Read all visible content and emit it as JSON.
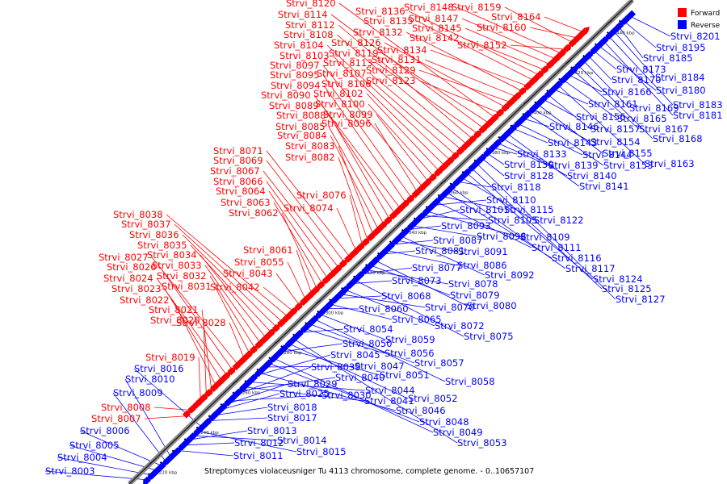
{
  "caption": "Streptomyces violaceusniger Tu 4113 chromosome, complete genome. - 0..10657107",
  "legend": {
    "forward_label": "Forward",
    "reverse_label": "Reverse",
    "forward_color": "#ff0000",
    "reverse_color": "#0000ff"
  },
  "axis": {
    "ticks": [
      "9220 kbp",
      "9240 kbp",
      "9260 kbp",
      "9280 kbp",
      "9300 kbp",
      "9320 kbp",
      "9340 kbp",
      "9360 kbp",
      "9380 kbp",
      "9400 kbp",
      "9420 kbp",
      "9440 kbp"
    ]
  },
  "forward_genes": [
    "Strvi_8007",
    "Strvi_8008",
    "Strvi_8019",
    "Strvi_8020",
    "Strvi_8021",
    "Strvi_8022",
    "Strvi_8023",
    "Strvi_8024",
    "Strvi_8026",
    "Strvi_8027",
    "Strvi_8028",
    "Strvi_8031",
    "Strvi_8032",
    "Strvi_8033",
    "Strvi_8034",
    "Strvi_8035",
    "Strvi_8036",
    "Strvi_8037",
    "Strvi_8038",
    "Strvi_8042",
    "Strvi_8043",
    "Strvi_8055",
    "Strvi_8061",
    "Strvi_8062",
    "Strvi_8063",
    "Strvi_8064",
    "Strvi_8066",
    "Strvi_8067",
    "Strvi_8069",
    "Strvi_8071",
    "Strvi_8074",
    "Strvi_8076",
    "Strvi_8082",
    "Strvi_8083",
    "Strvi_8084",
    "Strvi_8085",
    "Strvi_8088",
    "Strvi_8089",
    "Strvi_8090",
    "Strvi_8094",
    "Strvi_8095",
    "Strvi_8096",
    "Strvi_8097",
    "Strvi_8099",
    "Strvi_8100",
    "Strvi_8102",
    "Strvi_8103",
    "Strvi_8104",
    "Strvi_8106",
    "Strvi_8107",
    "Strvi_8108",
    "Strvi_8112",
    "Strvi_8113",
    "Strvi_8114",
    "Strvi_8119",
    "Strvi_8120",
    "Strvi_8123",
    "Strvi_8126",
    "Strvi_8129",
    "Strvi_8131",
    "Strvi_8132",
    "Strvi_8134",
    "Strvi_8135",
    "Strvi_8136",
    "Strvi_8142",
    "Strvi_8145",
    "Strvi_8147",
    "Strvi_8148",
    "Strvi_8152",
    "Strvi_8159",
    "Strvi_8160",
    "Strvi_8164"
  ],
  "reverse_genes": [
    "Strvi_8003",
    "Strvi_8004",
    "Strvi_8005",
    "Strvi_8006",
    "Strvi_8009",
    "Strvi_8010",
    "Strvi_8011",
    "Strvi_8012",
    "Strvi_8013",
    "Strvi_8014",
    "Strvi_8015",
    "Strvi_8016",
    "Strvi_8017",
    "Strvi_8018",
    "Strvi_8025",
    "Strvi_8029",
    "Strvi_8030",
    "Strvi_8039",
    "Strvi_8040",
    "Strvi_8041",
    "Strvi_8044",
    "Strvi_8045",
    "Strvi_8046",
    "Strvi_8047",
    "Strvi_8048",
    "Strvi_8049",
    "Strvi_8050",
    "Strvi_8051",
    "Strvi_8052",
    "Strvi_8053",
    "Strvi_8054",
    "Strvi_8056",
    "Strvi_8057",
    "Strvi_8058",
    "Strvi_8059",
    "Strvi_8060",
    "Strvi_8065",
    "Strvi_8068",
    "Strvi_8070",
    "Strvi_8072",
    "Strvi_8073",
    "Strvi_8075",
    "Strvi_8077",
    "Strvi_8078",
    "Strvi_8079",
    "Strvi_8080",
    "Strvi_8081",
    "Strvi_8086",
    "Strvi_8087",
    "Strvi_8091",
    "Strvi_8092",
    "Strvi_8093",
    "Strvi_8098",
    "Strvi_8101",
    "Strvi_8105",
    "Strvi_8109",
    "Strvi_8110",
    "Strvi_8111",
    "Strvi_8115",
    "Strvi_8116",
    "Strvi_8117",
    "Strvi_8118",
    "Strvi_8122",
    "Strvi_8124",
    "Strvi_8125",
    "Strvi_8127",
    "Strvi_8128",
    "Strvi_8130",
    "Strvi_8133",
    "Strvi_8139",
    "Strvi_8140",
    "Strvi_8141",
    "Strvi_8143",
    "Strvi_8144",
    "Strvi_8146",
    "Strvi_8153",
    "Strvi_8154",
    "Strvi_8155",
    "Strvi_8156",
    "Strvi_8157",
    "Strvi_8161",
    "Strvi_8163",
    "Strvi_8165",
    "Strvi_8166",
    "Strvi_8167",
    "Strvi_8168",
    "Strvi_8169",
    "Strvi_8170",
    "Strvi_8173",
    "Strvi_8180",
    "Strvi_8181",
    "Strvi_8183",
    "Strvi_8184",
    "Strvi_8185",
    "Strvi_8195",
    "Strvi_8201"
  ]
}
